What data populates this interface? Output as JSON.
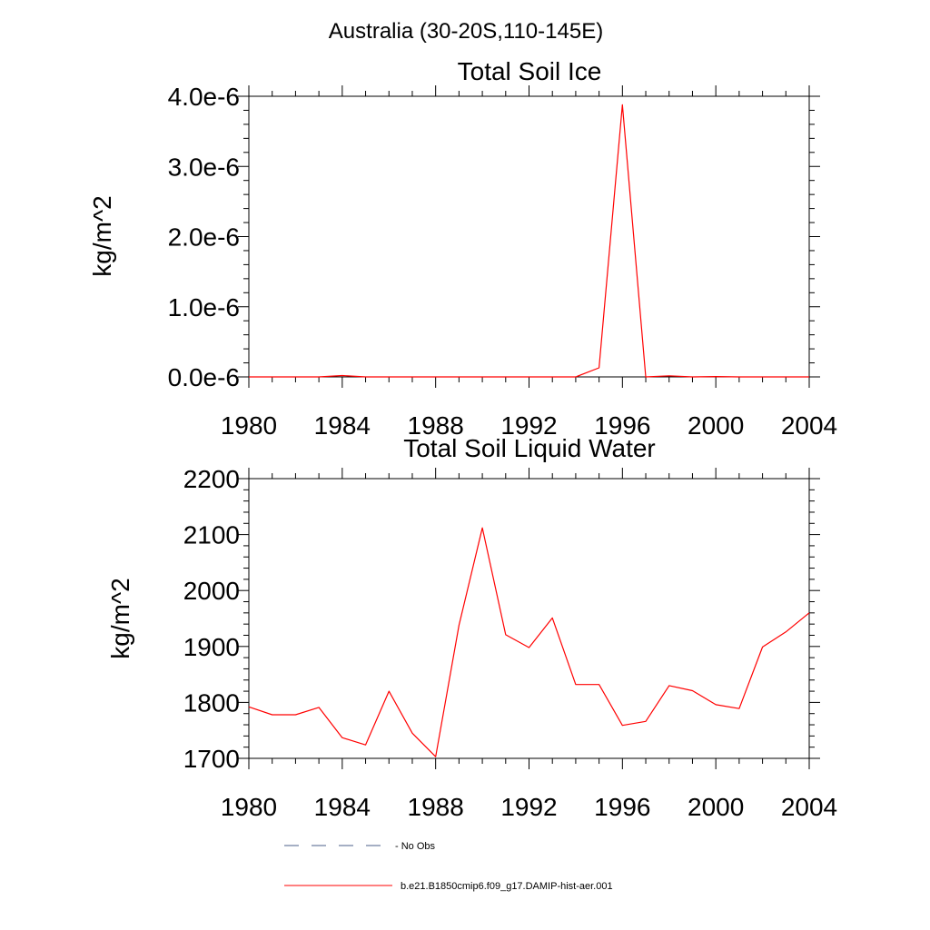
{
  "page_title": "Australia (30-20S,110-145E)",
  "legend": {
    "entries": [
      {
        "label": "No Obs",
        "color": "#4b5f8a",
        "style": "dashed"
      },
      {
        "label": "b.e21.B1850cmip6.f09_g17.DAMIP-hist-aer.001",
        "color": "#ff0000",
        "style": "solid"
      }
    ]
  },
  "chart_data": [
    {
      "type": "line",
      "title": "Total Soil Ice",
      "ylabel": "kg/m^2",
      "xlabel": "",
      "xlim": [
        1980,
        2004
      ],
      "ylim": [
        0,
        4e-06
      ],
      "xticks": [
        "1980",
        "1984",
        "1988",
        "1992",
        "1996",
        "2000",
        "2004"
      ],
      "yticks": [
        "0.0e-6",
        "1.0e-6",
        "2.0e-6",
        "3.0e-6",
        "4.0e-6"
      ],
      "x": [
        1980,
        1981,
        1982,
        1983,
        1984,
        1985,
        1986,
        1987,
        1988,
        1989,
        1990,
        1991,
        1992,
        1993,
        1994,
        1995,
        1996,
        1997,
        1998,
        1999,
        2000,
        2001,
        2002,
        2003,
        2004
      ],
      "series": [
        {
          "name": "b.e21.B1850cmip6.f09_g17.DAMIP-hist-aer.001",
          "color": "#ff0000",
          "values": [
            0,
            0,
            0,
            0,
            2e-08,
            0,
            0,
            0,
            0,
            0,
            0,
            0,
            0,
            0,
            0,
            1.3e-07,
            3.88e-06,
            0,
            1.5e-08,
            0,
            5e-09,
            0,
            0,
            0,
            0
          ]
        }
      ]
    },
    {
      "type": "line",
      "title": "Total Soil Liquid Water",
      "ylabel": "kg/m^2",
      "xlabel": "",
      "xlim": [
        1980,
        2004
      ],
      "ylim": [
        1700,
        2200
      ],
      "xticks": [
        "1980",
        "1984",
        "1988",
        "1992",
        "1996",
        "2000",
        "2004"
      ],
      "yticks": [
        "1700",
        "1800",
        "1900",
        "2000",
        "2100",
        "2200"
      ],
      "x": [
        1980,
        1981,
        1982,
        1983,
        1984,
        1985,
        1986,
        1987,
        1988,
        1989,
        1990,
        1991,
        1992,
        1993,
        1994,
        1995,
        1996,
        1997,
        1998,
        1999,
        2000,
        2001,
        2002,
        2003,
        2004
      ],
      "series": [
        {
          "name": "b.e21.B1850cmip6.f09_g17.DAMIP-hist-aer.001",
          "color": "#ff0000",
          "values": [
            1792,
            1778,
            1778,
            1791,
            1737,
            1724,
            1820,
            1745,
            1703,
            1938,
            2112,
            1921,
            1898,
            1951,
            1832,
            1832,
            1759,
            1766,
            1830,
            1821,
            1796,
            1789,
            1899,
            1926,
            1960
          ]
        }
      ]
    }
  ]
}
